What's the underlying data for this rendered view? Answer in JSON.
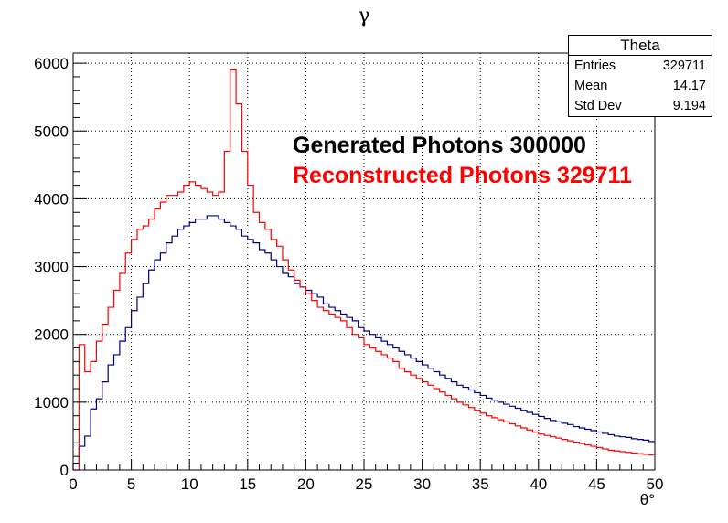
{
  "chart_data": {
    "type": "histogram",
    "title": "γ",
    "xlabel": "θ°",
    "ylabel": "",
    "xlim": [
      0,
      50
    ],
    "ylim": [
      0,
      6150
    ],
    "grid": true,
    "x_ticks": [
      "0",
      "5",
      "10",
      "15",
      "20",
      "25",
      "30",
      "35",
      "40",
      "45",
      "50"
    ],
    "y_ticks": [
      "0",
      "1000",
      "2000",
      "3000",
      "4000",
      "5000",
      "6000"
    ],
    "bin_width": 0.5,
    "series": [
      {
        "name": "Generated Photons",
        "color": "#000080",
        "values": [
          100,
          350,
          500,
          900,
          1050,
          1300,
          1550,
          1700,
          1900,
          2100,
          2350,
          2550,
          2750,
          2950,
          3100,
          3200,
          3350,
          3450,
          3550,
          3600,
          3650,
          3700,
          3700,
          3750,
          3750,
          3700,
          3650,
          3600,
          3550,
          3450,
          3400,
          3350,
          3250,
          3200,
          3100,
          3000,
          2900,
          2850,
          2750,
          2700,
          2650,
          2600,
          2550,
          2450,
          2400,
          2350,
          2300,
          2250,
          2200,
          2100,
          2050,
          2000,
          1950,
          1900,
          1850,
          1800,
          1750,
          1700,
          1650,
          1600,
          1550,
          1500,
          1450,
          1400,
          1350,
          1300,
          1250,
          1220,
          1180,
          1140,
          1100,
          1060,
          1030,
          1000,
          970,
          940,
          910,
          880,
          850,
          820,
          790,
          760,
          730,
          710,
          690,
          670,
          640,
          620,
          600,
          580,
          560,
          540,
          520,
          500,
          490,
          480,
          460,
          450,
          440,
          420
        ]
      },
      {
        "name": "Reconstructed Photons",
        "color": "#ff0000",
        "values": [
          0,
          1850,
          1450,
          1600,
          1900,
          2150,
          2400,
          2650,
          2900,
          3200,
          3400,
          3550,
          3600,
          3700,
          3850,
          3950,
          4050,
          4050,
          4100,
          4200,
          4250,
          4200,
          4150,
          4100,
          4050,
          4100,
          4700,
          5900,
          5400,
          4700,
          4200,
          3800,
          3650,
          3550,
          3400,
          3300,
          3100,
          2950,
          2800,
          2700,
          2600,
          2500,
          2400,
          2350,
          2300,
          2250,
          2200,
          2100,
          2000,
          1950,
          1850,
          1800,
          1750,
          1700,
          1650,
          1600,
          1500,
          1450,
          1400,
          1350,
          1300,
          1250,
          1200,
          1150,
          1100,
          1050,
          1000,
          960,
          920,
          880,
          840,
          800,
          770,
          740,
          710,
          680,
          650,
          620,
          590,
          560,
          530,
          510,
          490,
          470,
          450,
          430,
          410,
          390,
          370,
          350,
          330,
          310,
          290,
          280,
          270,
          260,
          250,
          240,
          230,
          220
        ]
      }
    ],
    "annotations": [
      {
        "text": "Generated Photons 300000",
        "color": "#000000"
      },
      {
        "text": "Reconstructed Photons 329711",
        "color": "#ff0000"
      }
    ]
  },
  "stats": {
    "title": "Theta",
    "rows": [
      {
        "label": "Entries",
        "value": "329711"
      },
      {
        "label": "Mean",
        "value": "14.17"
      },
      {
        "label": "Std Dev",
        "value": "9.194"
      }
    ]
  }
}
